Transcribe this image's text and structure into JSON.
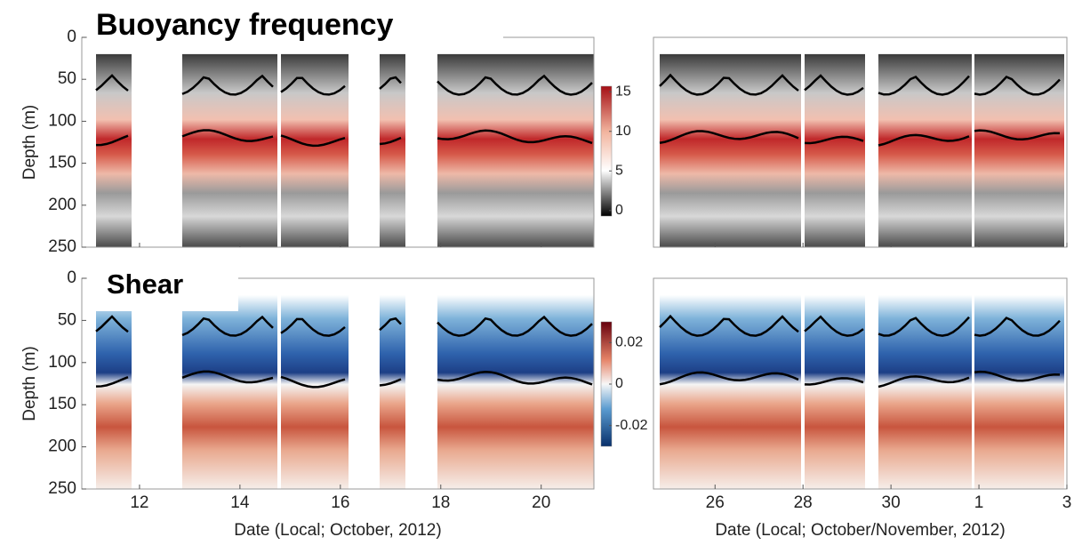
{
  "panels": [
    {
      "title": "Buoyancy frequency",
      "y_label": "Depth (m)",
      "ylim": [
        0,
        250
      ],
      "yticks": [
        0,
        50,
        100,
        150,
        200,
        250
      ],
      "colorbar": {
        "lim": [
          -0.7,
          15.7
        ],
        "ticks": [
          0,
          5,
          10,
          15
        ]
      }
    },
    {
      "title": "Shear",
      "y_label": "Depth (m)",
      "ylim": [
        0,
        250
      ],
      "yticks": [
        0,
        50,
        100,
        150,
        200,
        250
      ],
      "colorbar": {
        "lim": [
          -0.03,
          0.03
        ],
        "ticks": [
          -0.02,
          0,
          0.02
        ]
      }
    }
  ],
  "x_axes": [
    {
      "label": "Date (Local; October, 2012)",
      "xlim": [
        10.85,
        21.05
      ],
      "xticks": [
        12,
        14,
        16,
        18,
        20
      ]
    },
    {
      "label": "Date (Local; October/November, 2012)",
      "xlim": [
        24.6,
        34
      ],
      "xticks": [
        26,
        28,
        30,
        {
          "value": 32,
          "label": "1"
        },
        {
          "value": 34,
          "label": "3"
        }
      ]
    }
  ]
}
